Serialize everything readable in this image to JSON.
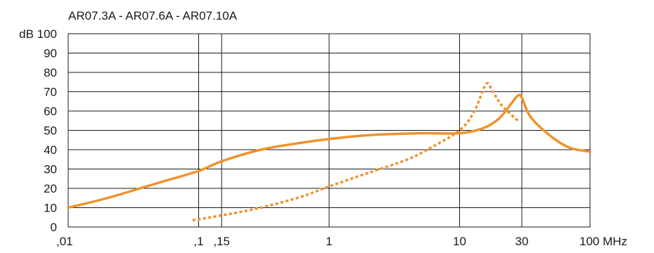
{
  "chart_data": {
    "type": "line",
    "title": "AR07.3A - AR07.6A - AR07.10A",
    "ylabel": "dB",
    "xlabel": "MHz",
    "xscale": "log",
    "xlim": [
      0.01,
      100
    ],
    "ylim": [
      0,
      100
    ],
    "grid": true,
    "legend": "none",
    "x_ticks": [
      {
        "value": 0.01,
        "label": ",01"
      },
      {
        "value": 0.1,
        "label": ",1"
      },
      {
        "value": 0.15,
        "label": ",15"
      },
      {
        "value": 1,
        "label": "1"
      },
      {
        "value": 10,
        "label": "10"
      },
      {
        "value": 30,
        "label": "30"
      },
      {
        "value": 100,
        "label": "100 MHz"
      }
    ],
    "y_ticks": [
      {
        "value": 0,
        "label": "0"
      },
      {
        "value": 10,
        "label": "10"
      },
      {
        "value": 20,
        "label": "20"
      },
      {
        "value": 30,
        "label": "30"
      },
      {
        "value": 40,
        "label": "40"
      },
      {
        "value": 50,
        "label": "50"
      },
      {
        "value": 60,
        "label": "60"
      },
      {
        "value": 70,
        "label": "70"
      },
      {
        "value": 80,
        "label": "80"
      },
      {
        "value": 90,
        "label": "90"
      },
      {
        "value": 100,
        "label": "dB 100"
      }
    ],
    "series": [
      {
        "style": "solid",
        "color": "#F0922B",
        "x": [
          0.01,
          0.02,
          0.05,
          0.1,
          0.15,
          0.3,
          0.6,
          1,
          2,
          5,
          10,
          15,
          20,
          25,
          28,
          30,
          35,
          50,
          70,
          100
        ],
        "y": [
          10,
          15,
          23,
          29,
          34,
          40,
          43.5,
          45.5,
          47.5,
          48.5,
          48.5,
          51,
          56,
          64,
          68,
          67,
          57,
          47,
          41,
          39
        ]
      },
      {
        "style": "dotted",
        "color": "#F0922B",
        "x": [
          0.09,
          0.15,
          0.3,
          0.6,
          1,
          2,
          4,
          6,
          10,
          13,
          16,
          18,
          21,
          25,
          28
        ],
        "y": [
          3.5,
          6,
          10,
          15.5,
          21,
          28,
          35,
          41,
          50,
          60,
          74,
          70,
          63,
          58,
          55
        ]
      }
    ]
  }
}
